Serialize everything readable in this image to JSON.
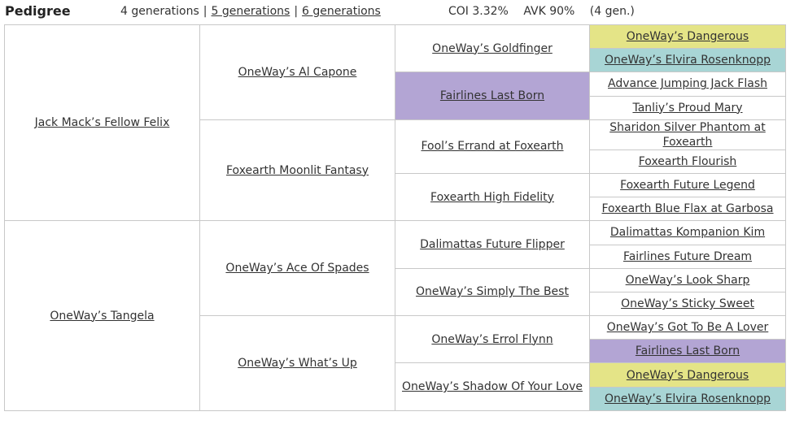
{
  "header": {
    "title": "Pedigree",
    "generations": {
      "current": "4 generations",
      "options": [
        "5 generations",
        "6 generations"
      ]
    },
    "coi": "COI 3.32%",
    "avk": "AVK 90%",
    "gen_note": "(4 gen.)"
  },
  "colors": {
    "yellow": "#e4e487",
    "teal": "#a8d5d5",
    "purple": "#b3a5d4"
  },
  "pedigree": {
    "g1": [
      "Jack Mack’s Fellow Felix",
      "OneWay’s Tangela"
    ],
    "g2": [
      "OneWay’s Al Capone",
      "Foxearth Moonlit Fantasy",
      "OneWay’s Ace Of Spades",
      "OneWay’s What’s Up"
    ],
    "g3": [
      "OneWay’s Goldfinger",
      "Fairlines Last Born",
      "Fool’s Errand at Foxearth",
      "Foxearth High Fidelity",
      "Dalimattas Future Flipper",
      "OneWay’s Simply The Best",
      "OneWay’s Errol Flynn",
      "OneWay’s Shadow Of Your Love"
    ],
    "g4": [
      "OneWay’s Dangerous",
      "OneWay’s Elvira Rosenknopp",
      "Advance Jumping Jack Flash",
      "Tanliy’s Proud Mary",
      "Sharidon Silver Phantom at Foxearth",
      "Foxearth Flourish",
      "Foxearth Future Legend",
      "Foxearth Blue Flax at Garbosa",
      "Dalimattas Kompanion Kim",
      "Fairlines Future Dream",
      "OneWay’s Look Sharp",
      "OneWay’s Sticky Sweet",
      "OneWay’s Got To Be A Lover",
      "Fairlines Last Born",
      "OneWay’s Dangerous",
      "OneWay’s Elvira Rosenknopp"
    ]
  }
}
